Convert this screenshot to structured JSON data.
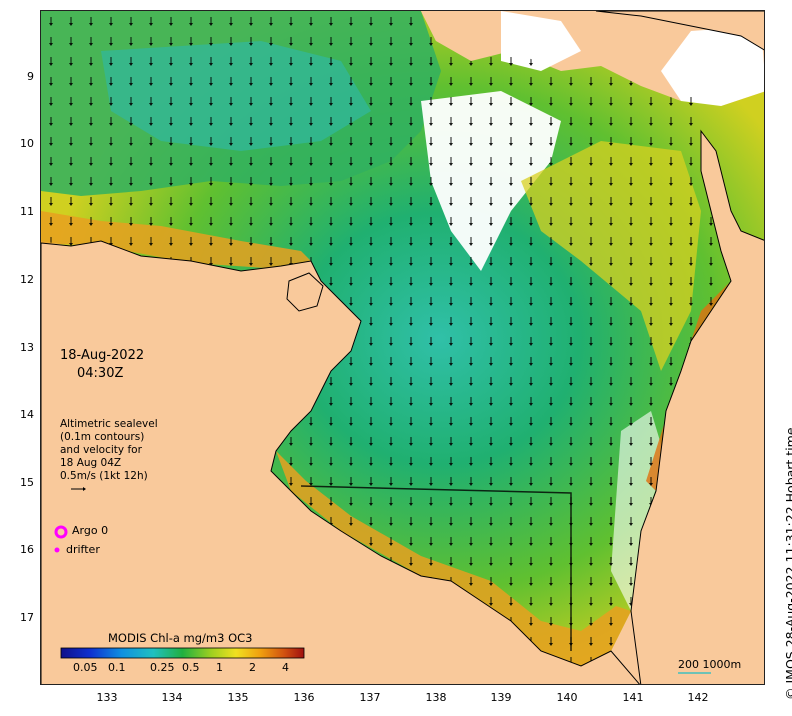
{
  "map": {
    "date_line1": "18-Aug-2022",
    "date_line2": "04:30Z",
    "velocity_legend": [
      "Altimetric sealevel",
      "(0.1m contours)",
      "and velocity for",
      "18 Aug 04Z",
      "0.5m/s (1kt 12h)"
    ],
    "argo_label": "Argo 0",
    "drifter_label": "drifter",
    "colorbar_title": "MODIS Chl-a mg/m3 OC3",
    "colorbar_ticks": [
      "0.05",
      "0.1",
      "0.25",
      "0.5",
      "1",
      "2",
      "4"
    ],
    "scale_bar_label": "200  1000m",
    "credit": "© IMOS 28-Aug-2022 11:31:22 Hobart time",
    "y_ticks": [
      "9",
      "10",
      "11",
      "12",
      "13",
      "14",
      "15",
      "16",
      "17"
    ],
    "x_ticks": [
      "133",
      "134",
      "135",
      "136",
      "137",
      "138",
      "139",
      "140",
      "141",
      "142"
    ],
    "colors": {
      "land": "#f9c99b",
      "argo_marker": "#ff00ff",
      "drifter_marker": "#ff00ff",
      "arrow": "#000000",
      "scale_bar": "#40c0c0"
    }
  }
}
